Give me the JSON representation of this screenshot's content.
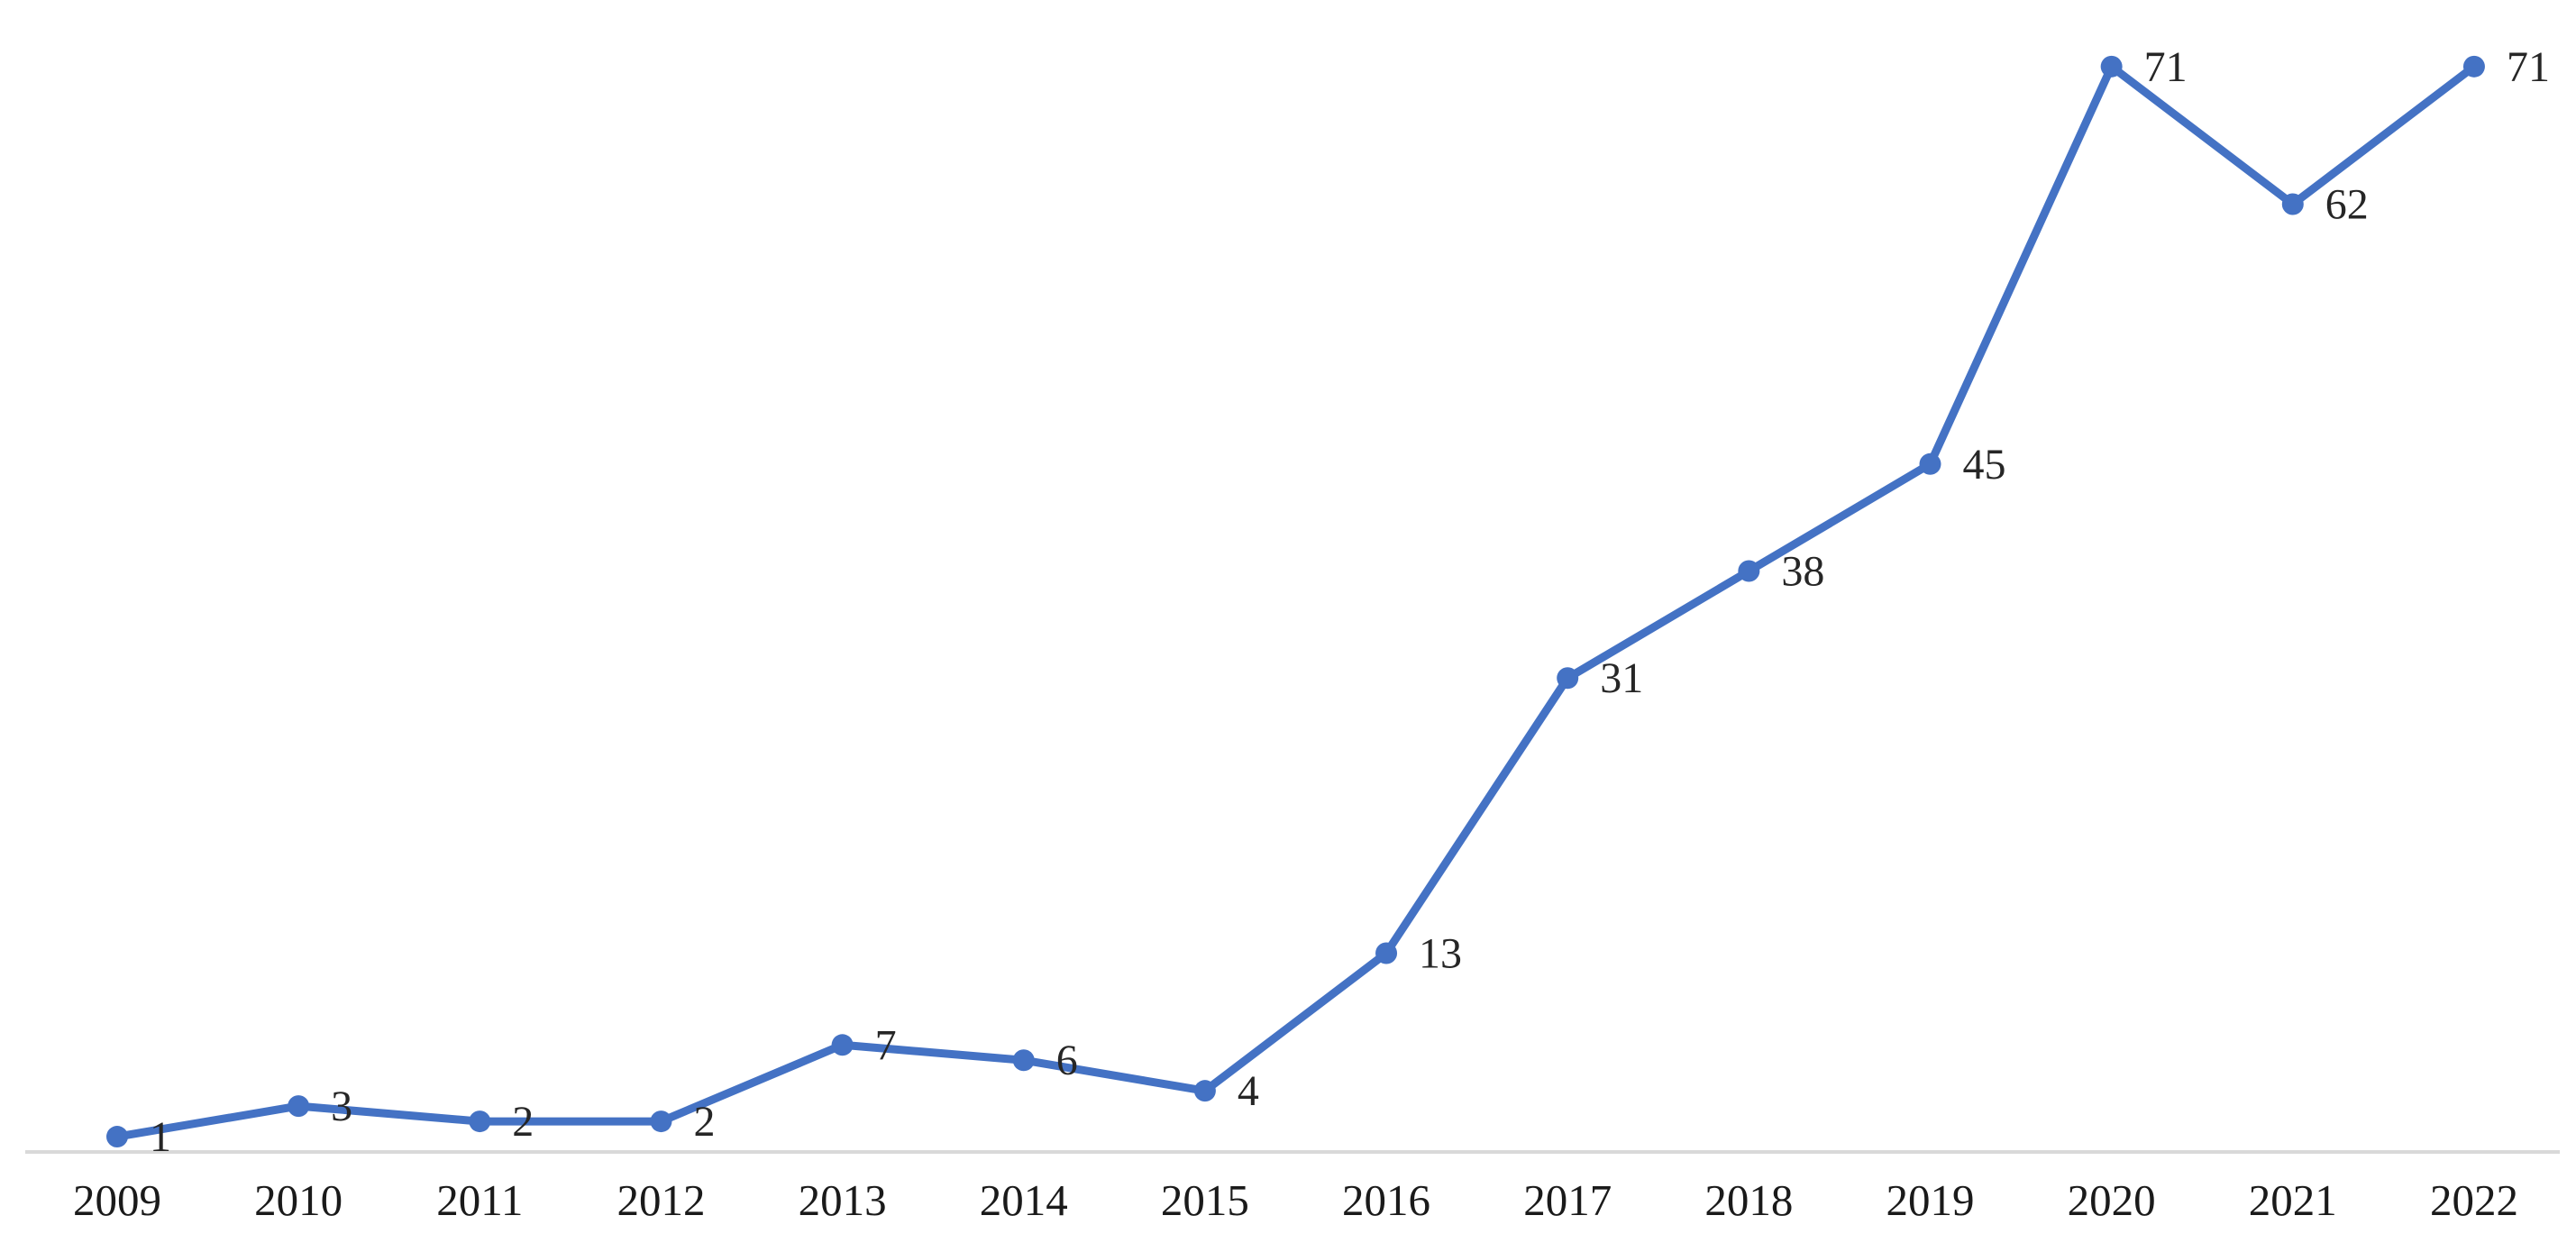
{
  "chart_data": {
    "type": "line",
    "title": "",
    "xlabel": "",
    "ylabel": "",
    "categories": [
      "2009",
      "2010",
      "2011",
      "2012",
      "2013",
      "2014",
      "2015",
      "2016",
      "2017",
      "2018",
      "2019",
      "2020",
      "2021",
      "2022"
    ],
    "values": [
      1,
      3,
      2,
      2,
      7,
      6,
      4,
      13,
      31,
      38,
      45,
      71,
      62,
      71
    ],
    "data_labels": [
      "1",
      "3",
      "2",
      "2",
      "7",
      "6",
      "4",
      "13",
      "31",
      "38",
      "45",
      "71",
      "62",
      "71"
    ],
    "ylim": [
      0,
      75
    ],
    "grid": false,
    "legend": false,
    "y_axis_visible": false,
    "marker_style": "circle",
    "colors": {
      "line": "#4472C4",
      "marker": "#4472C4",
      "data_label": "#262626",
      "tick_label": "#1a1a1a",
      "axis_line": "#d9d9d9",
      "background": "#ffffff"
    }
  }
}
